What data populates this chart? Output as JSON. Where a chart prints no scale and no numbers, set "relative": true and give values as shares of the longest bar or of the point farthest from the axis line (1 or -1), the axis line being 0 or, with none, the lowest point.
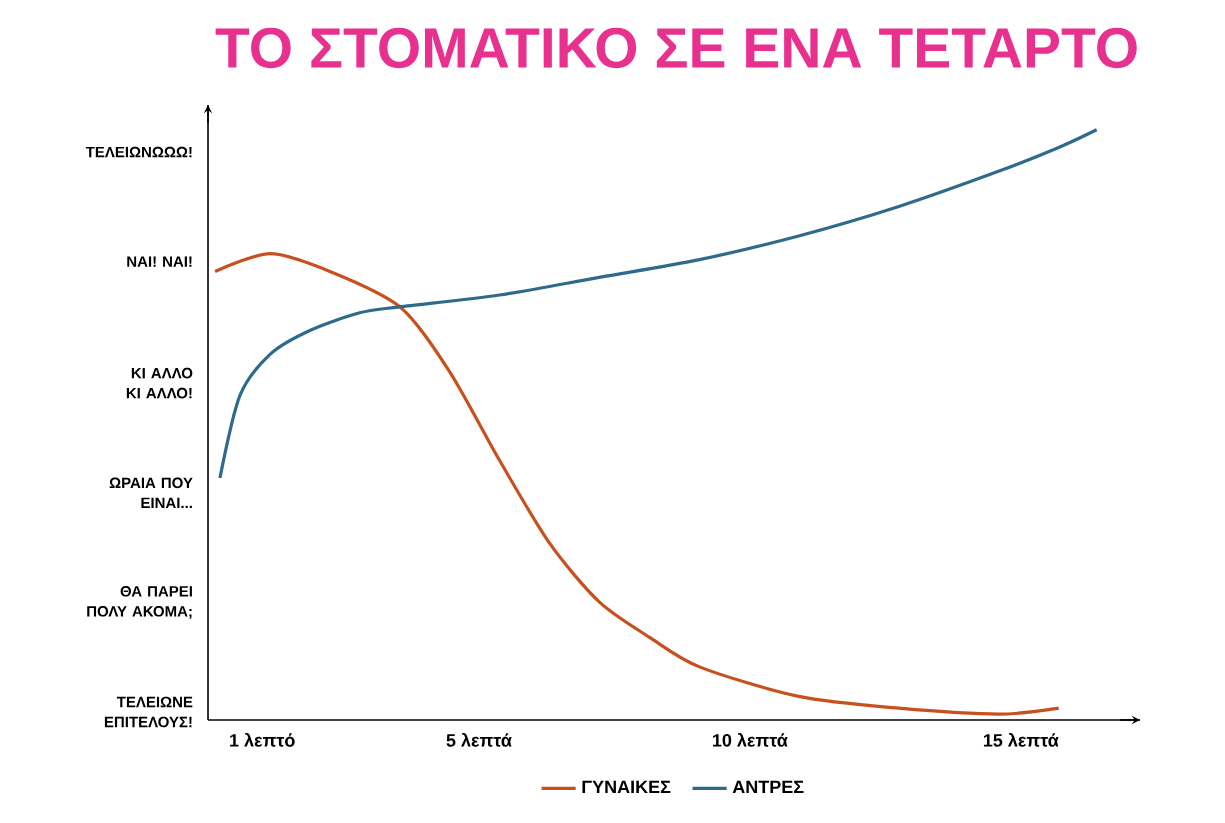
{
  "chart_data": {
    "type": "line",
    "title": "ΤΟ ΣΤΟΜΑΤΙΚΟ ΣΕ ΕΝΑ ΤΕΤΑΡΤΟ",
    "relative": true,
    "xlim": [
      0,
      17.2
    ],
    "xticks": [
      {
        "value": 1,
        "label": "1 λεπτό"
      },
      {
        "value": 5,
        "label": "5 λεπτά"
      },
      {
        "value": 10,
        "label": "10 λεπτά"
      },
      {
        "value": 15,
        "label": "15 λεπτά"
      }
    ],
    "annotations": [
      "ΤΕΛΕΙΩΝΩΩΩ!",
      "ΝΑΙ! ΝΑΙ!",
      "ΚΙ ΑΛΛΟ ΚΙ ΑΛΛΟ!",
      "ΩΡΑΙΑ ΠΟΥ ΕΙΝΑΙ...",
      "ΘΑ ΠΑΡΕΙ ΠΟΛΥ ΑΚΟΜΑ;",
      "ΤΕΛΕΙΩΝΕ ΕΠΙΤΕΛΟΥΣ!"
    ],
    "legend": "bottom",
    "marker": "none",
    "line_style": "solid",
    "series": [
      {
        "name": "ΓΥΝΑΙΚΕΣ",
        "color": "#c8501e",
        "x": [
          0.13,
          1.15,
          2.25,
          3.54,
          4.46,
          5.38,
          6.3,
          7.22,
          8.15,
          9.07,
          10.9,
          12.75,
          14.6,
          15.7
        ],
        "values": [
          0.76,
          0.79,
          0.76,
          0.7,
          0.59,
          0.44,
          0.3,
          0.2,
          0.14,
          0.09,
          0.04,
          0.02,
          0.01,
          0.02
        ]
      },
      {
        "name": "ΑΝΤΡΕΣ",
        "color": "#2e6b8a",
        "x": [
          0.22,
          0.59,
          1.15,
          1.88,
          2.8,
          3.54,
          5.38,
          7.22,
          9.07,
          10.9,
          12.75,
          14.6,
          15.7,
          16.4
        ],
        "values": [
          0.41,
          0.55,
          0.62,
          0.66,
          0.69,
          0.7,
          0.72,
          0.75,
          0.78,
          0.82,
          0.87,
          0.93,
          0.97,
          1.0
        ]
      }
    ]
  }
}
